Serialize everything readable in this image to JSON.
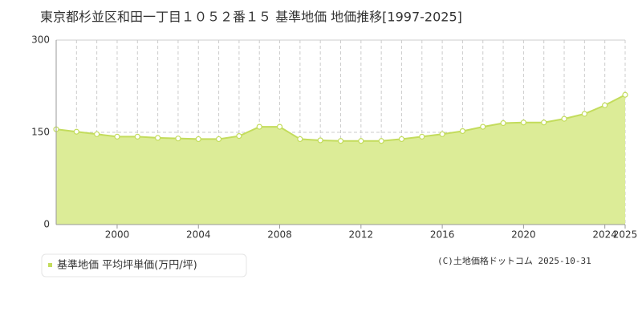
{
  "chart_data": {
    "type": "area",
    "title": "東京都杉並区和田一丁目１０５２番１５ 基準地価 地価推移[1997-2025]",
    "x": [
      1997,
      1998,
      1999,
      2000,
      2001,
      2002,
      2003,
      2004,
      2005,
      2006,
      2007,
      2008,
      2009,
      2010,
      2011,
      2012,
      2013,
      2014,
      2015,
      2016,
      2017,
      2018,
      2019,
      2020,
      2021,
      2022,
      2023,
      2024,
      2025
    ],
    "series": [
      {
        "name": "基準地価 平均坪単価(万円/坪)",
        "color": "#c3dc5c",
        "fill": "#dcec97",
        "values": [
          155,
          151,
          147,
          143,
          143,
          141,
          140,
          139,
          139,
          144,
          159,
          159,
          139,
          137,
          136,
          136,
          136,
          139,
          143,
          147,
          152,
          159,
          165,
          166,
          166,
          172,
          180,
          194,
          211
        ]
      }
    ],
    "xlim": [
      1997,
      2025
    ],
    "xticks": [
      2000,
      2004,
      2008,
      2012,
      2016,
      2020,
      2024,
      2025
    ],
    "ylim": [
      0,
      300
    ],
    "yticks": [
      0,
      150,
      300
    ],
    "grid": true,
    "legend": "bottom-left",
    "credit": "(C)土地価格ドットコム 2025-10-31"
  }
}
